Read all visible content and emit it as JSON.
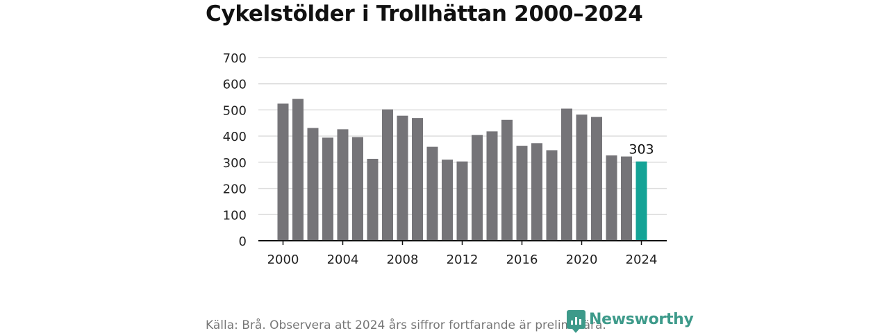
{
  "title": "Cykelstölder i Trollhättan 2000–2024",
  "source": "Källa: Brå. Observera att 2024 års siffror fortfarande är preliminära.",
  "logo": {
    "text": "Newsworthy",
    "icon": "newsworthy-logo-icon"
  },
  "colors": {
    "bar": "#757478",
    "highlight": "#14a396",
    "grid": "#dddddd",
    "axis": "#111111"
  },
  "chart_data": {
    "type": "bar",
    "title": "Cykelstölder i Trollhättan 2000–2024",
    "xlabel": "",
    "ylabel": "",
    "x": [
      2000,
      2001,
      2002,
      2003,
      2004,
      2005,
      2006,
      2007,
      2008,
      2009,
      2010,
      2011,
      2012,
      2013,
      2014,
      2015,
      2016,
      2017,
      2018,
      2019,
      2020,
      2021,
      2022,
      2023,
      2024
    ],
    "values": [
      524,
      542,
      431,
      394,
      426,
      396,
      313,
      502,
      478,
      469,
      359,
      310,
      303,
      404,
      418,
      462,
      363,
      373,
      346,
      505,
      482,
      473,
      326,
      322,
      303
    ],
    "ylim": [
      0,
      700
    ],
    "yticks": [
      0,
      100,
      200,
      300,
      400,
      500,
      600,
      700
    ],
    "xticks": [
      2000,
      2004,
      2008,
      2012,
      2016,
      2020,
      2024
    ],
    "highlight_index": 24,
    "highlight_label": "303",
    "grid": true,
    "legend": "none"
  }
}
